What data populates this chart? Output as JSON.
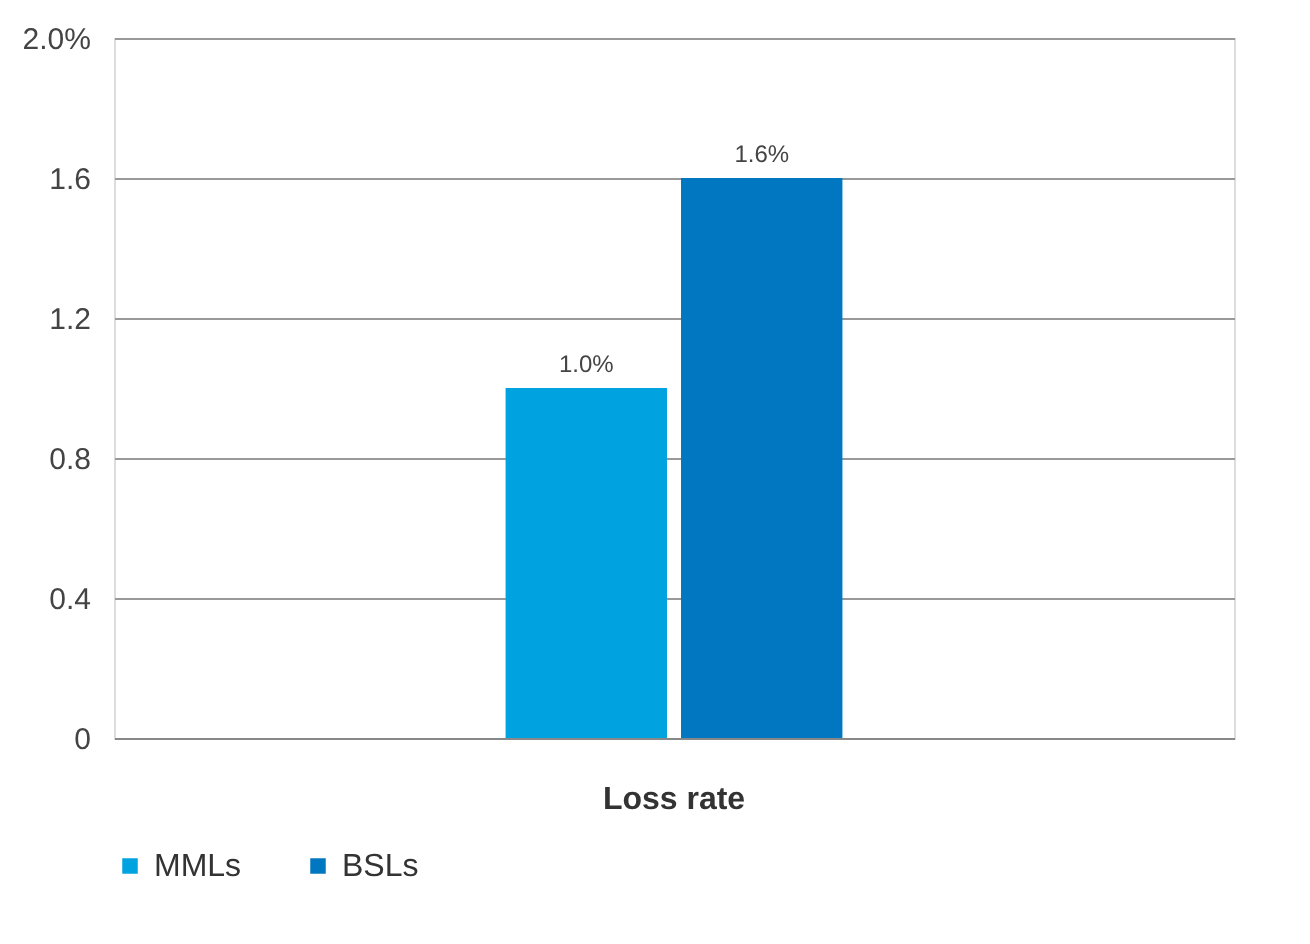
{
  "chart_data": {
    "type": "bar",
    "categories": [
      "Loss rate"
    ],
    "series": [
      {
        "name": "MMLs",
        "color": "#00a3e0",
        "values": [
          1.0
        ],
        "value_labels": [
          "1.0%"
        ]
      },
      {
        "name": "BSLs",
        "color": "#0077c0",
        "values": [
          1.6
        ],
        "value_labels": [
          "1.6%"
        ]
      }
    ],
    "ylim": [
      0,
      2.0
    ],
    "yticks": [
      0,
      0.4,
      0.8,
      1.2,
      1.6,
      {
        "value": 2.0,
        "label": "2.0%"
      }
    ],
    "grid": "y",
    "legend": "bottom"
  }
}
